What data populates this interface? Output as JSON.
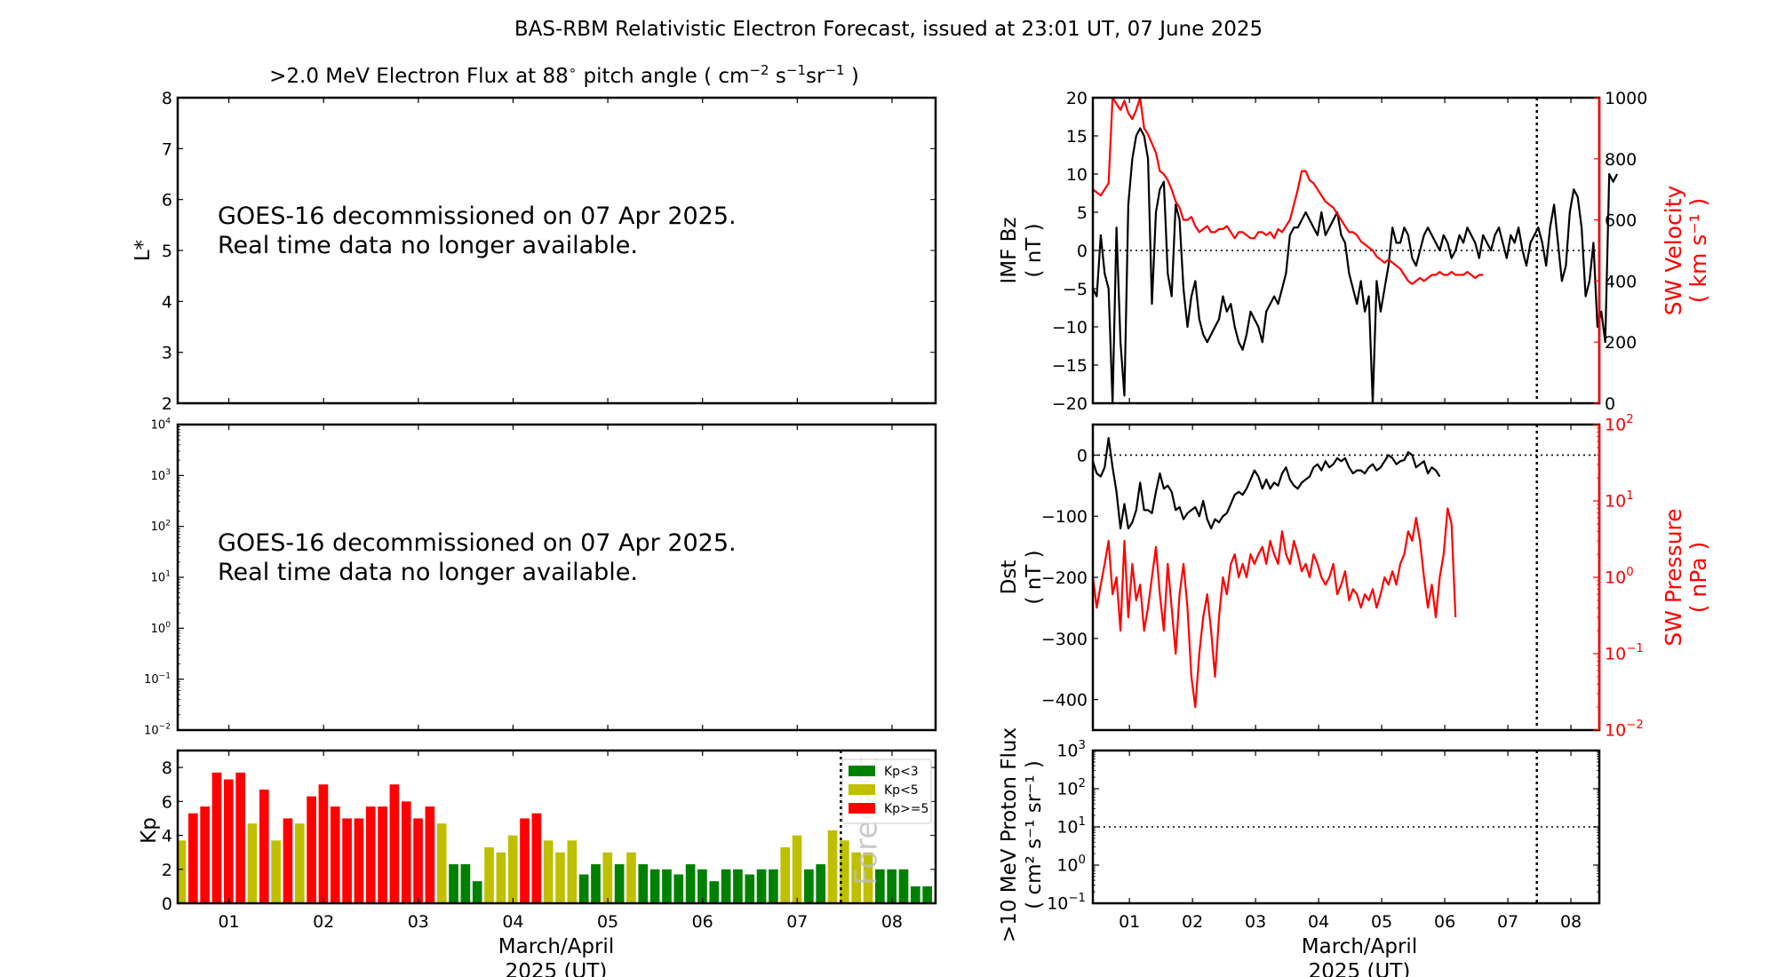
{
  "figure_title": "BAS-RBM Relativistic Electron Forecast, issued at 23:01 UT, 07 June 2025",
  "chart_data": [
    {
      "id": "electron-flux-lstar",
      "type": "heatmap",
      "title": ">2.0 MeV Electron Flux at 88° pitch angle ( cm⁻² s⁻¹ sr⁻¹ )",
      "title_parts": {
        "main": ">2.0 MeV Electron Flux at 88",
        "deg": "∘",
        "after": " pitch angle ( cm",
        "e1": "−2",
        "s": " s",
        "e2": "−1",
        "sr": "sr",
        "e3": "−1",
        "close": " )"
      },
      "ylabel": "L*",
      "ylim": [
        2,
        8
      ],
      "yticks": [
        2,
        3,
        4,
        5,
        6,
        7,
        8
      ],
      "message": [
        "GOES-16 decommissioned on 07 Apr 2025.",
        "Real time data no longer available."
      ]
    },
    {
      "id": "electron-flux-log",
      "type": "line",
      "yscale": "log",
      "ylim": [
        0.01,
        10000
      ],
      "ytick_exponents": [
        "−2",
        "−1",
        "0",
        "1",
        "2",
        "3",
        "4"
      ],
      "message": [
        "GOES-16 decommissioned on 07 Apr 2025.",
        "Real time data no longer available."
      ]
    },
    {
      "id": "kp-index",
      "type": "bar",
      "ylabel": "Kp",
      "ylim": [
        0,
        9
      ],
      "yticks": [
        0,
        2,
        4,
        6,
        8
      ],
      "xlabel": [
        "March/April",
        "2025 (UT)"
      ],
      "xlim_days": [
        0.46,
        8.46
      ],
      "xtick_labels": [
        "01",
        "02",
        "03",
        "04",
        "05",
        "06",
        "07",
        "08"
      ],
      "forecast_day": 7.46,
      "forecast_label": "Forecast",
      "bar_start_day": 0.4375,
      "bar_interval_days": 0.125,
      "values": [
        3.7,
        5.3,
        5.7,
        7.7,
        7.3,
        7.7,
        4.7,
        6.7,
        3.7,
        5.0,
        4.7,
        6.3,
        7.0,
        5.7,
        5.0,
        5.0,
        5.7,
        5.7,
        7.0,
        6.0,
        5.0,
        5.7,
        4.7,
        2.3,
        2.3,
        1.3,
        3.3,
        3.0,
        4.0,
        5.0,
        5.3,
        3.7,
        3.0,
        3.7,
        1.7,
        2.3,
        3.0,
        2.3,
        3.0,
        2.3,
        2.0,
        2.0,
        1.7,
        2.3,
        2.0,
        1.3,
        2.0,
        2.0,
        1.7,
        2.0,
        2.0,
        3.3,
        4.0,
        2.0,
        2.3,
        4.3,
        3.7,
        3.0,
        3.0,
        2.0,
        2.0,
        2.0,
        1.0,
        1.0,
        2.0
      ],
      "legend": [
        {
          "label": "Kp<3",
          "color": "#008000"
        },
        {
          "label": "Kp<5",
          "color": "#bfbf00"
        },
        {
          "label": "Kp>=5",
          "color": "#ff0000"
        }
      ],
      "legend_position": "top-right"
    },
    {
      "id": "imf-bz-sw-velocity",
      "type": "line",
      "ylabel": [
        "IMF Bz",
        "( nT )"
      ],
      "ylim": [
        -20,
        20
      ],
      "yticks": [
        -20,
        -15,
        -10,
        -5,
        0,
        5,
        10,
        15,
        20
      ],
      "y2label": [
        "SW Velocity",
        "( km s⁻¹ )"
      ],
      "y2lim": [
        0,
        1000
      ],
      "y2ticks": [
        0,
        200,
        400,
        600,
        800,
        1000
      ],
      "xlim_days": [
        0.42,
        8.45
      ],
      "forecast_day": 7.46,
      "series": [
        {
          "name": "IMF Bz",
          "color": "#000000",
          "x_start": 0.42,
          "dx": 0.0625,
          "values": [
            -5,
            -6,
            2,
            -3,
            -5,
            -20,
            3,
            -12,
            -19,
            6,
            12,
            15,
            16,
            15,
            12,
            -7,
            5,
            8,
            9,
            -3,
            -6,
            6,
            4,
            -5,
            -10,
            -6,
            -4,
            -9,
            -11,
            -12,
            -11,
            -10,
            -9,
            -6,
            -8,
            -7,
            -10,
            -12,
            -13,
            -11,
            -8,
            -9,
            -10,
            -12,
            -8,
            -7,
            -6,
            -7,
            -5,
            -3,
            2,
            3,
            3,
            4,
            5,
            4,
            3,
            2,
            5,
            2,
            3,
            4,
            5,
            2,
            1,
            -3,
            -5,
            -7,
            -4,
            -8,
            -6,
            -20,
            -4,
            -8,
            -5,
            -2,
            3,
            1,
            1,
            3,
            2,
            -1,
            -2,
            0,
            2,
            3,
            2,
            1,
            0,
            2,
            1,
            -1,
            0,
            2,
            1,
            3,
            2,
            1,
            -1,
            2,
            1,
            0,
            2,
            3,
            1,
            -1,
            2,
            1,
            3,
            0,
            -2,
            1,
            2,
            3,
            1,
            -2,
            3,
            6,
            1,
            -4,
            -2,
            5,
            8,
            7,
            3,
            -6,
            -4,
            1,
            -10,
            -8,
            -12,
            10,
            9,
            10
          ]
        },
        {
          "name": "SW Velocity",
          "color": "#ff0000",
          "x_start": 0.42,
          "dx": 0.0625,
          "values": [
            700,
            690,
            680,
            700,
            720,
            1000,
            980,
            960,
            990,
            950,
            930,
            960,
            1000,
            900,
            880,
            850,
            820,
            760,
            750,
            730,
            700,
            660,
            640,
            600,
            600,
            610,
            580,
            560,
            570,
            580,
            560,
            560,
            570,
            570,
            580,
            560,
            540,
            560,
            560,
            550,
            540,
            540,
            560,
            560,
            550,
            560,
            540,
            570,
            560,
            580,
            600,
            650,
            700,
            760,
            760,
            730,
            720,
            700,
            680,
            660,
            650,
            640,
            620,
            600,
            580,
            560,
            560,
            550,
            530,
            520,
            510,
            500,
            480,
            470,
            460,
            470,
            460,
            450,
            440,
            420,
            400,
            390,
            400,
            410,
            400,
            410,
            420,
            420,
            430,
            420,
            420,
            430,
            420,
            420,
            420,
            430,
            420,
            410,
            420,
            420
          ]
        }
      ]
    },
    {
      "id": "dst-sw-pressure",
      "type": "line",
      "ylabel": [
        "Dst",
        "( nT )"
      ],
      "ylim": [
        -450,
        50
      ],
      "yticks": [
        -400,
        -300,
        -200,
        -100,
        0
      ],
      "y2label": [
        "SW Pressure",
        "( nPa )"
      ],
      "y2scale": "log",
      "y2lim": [
        0.01,
        100
      ],
      "y2tick_exponents": [
        "−2",
        "−1",
        "0",
        "1",
        "2"
      ],
      "xlim_days": [
        0.42,
        8.45
      ],
      "forecast_day": 7.46,
      "series": [
        {
          "name": "Dst",
          "color": "#000000",
          "x_start": 0.42,
          "dx": 0.0625,
          "values": [
            -10,
            -30,
            -35,
            -20,
            28,
            -20,
            -60,
            -120,
            -80,
            -120,
            -110,
            -90,
            -45,
            -90,
            -90,
            -95,
            -60,
            -30,
            -55,
            -50,
            -60,
            -90,
            -85,
            -105,
            -95,
            -90,
            -85,
            -100,
            -75,
            -105,
            -120,
            -105,
            -110,
            -100,
            -95,
            -80,
            -65,
            -60,
            -65,
            -55,
            -40,
            -25,
            -35,
            -55,
            -40,
            -55,
            -45,
            -50,
            -30,
            -20,
            -40,
            -50,
            -55,
            -45,
            -40,
            -35,
            -20,
            -15,
            -25,
            -10,
            -20,
            -15,
            -5,
            -10,
            -5,
            -20,
            -30,
            -25,
            -25,
            -30,
            -20,
            -15,
            -25,
            -20,
            -10,
            0,
            -5,
            -15,
            -10,
            -8,
            5,
            0,
            -20,
            -15,
            -10,
            -30,
            -20,
            -25,
            -35
          ]
        },
        {
          "name": "SW Pressure",
          "color": "#ff0000",
          "x_start": 0.42,
          "dx": 0.0625,
          "values": [
            1.0,
            0.4,
            0.8,
            1.5,
            3.0,
            0.6,
            1.0,
            0.2,
            3.0,
            0.3,
            1.5,
            0.5,
            0.8,
            0.2,
            0.4,
            1.0,
            2.5,
            0.6,
            0.2,
            1.5,
            0.4,
            0.1,
            0.6,
            1.5,
            0.4,
            0.05,
            0.02,
            0.1,
            0.3,
            0.6,
            0.2,
            0.05,
            0.3,
            1.0,
            0.6,
            1.5,
            2.0,
            1.0,
            1.5,
            1.0,
            2.0,
            1.5,
            2.0,
            2.5,
            1.5,
            3.0,
            2.0,
            1.5,
            4.0,
            2.0,
            1.5,
            3.0,
            2.0,
            1.2,
            1.5,
            1.0,
            2.0,
            1.5,
            1.0,
            0.8,
            1.0,
            1.5,
            0.6,
            0.8,
            1.2,
            0.5,
            0.7,
            0.6,
            0.4,
            0.6,
            0.5,
            0.7,
            0.4,
            0.6,
            1.0,
            0.8,
            1.2,
            0.8,
            1.5,
            2.0,
            4.0,
            3.0,
            6.0,
            3.0,
            1.0,
            0.4,
            0.8,
            0.3,
            1.0,
            2.0,
            8.0,
            5.0,
            0.3
          ]
        }
      ]
    },
    {
      "id": "proton-flux",
      "type": "line",
      "ylabel": [
        ">10 MeV Proton Flux",
        "( cm² s⁻¹ sr⁻¹ )"
      ],
      "yscale": "log",
      "ylim": [
        0.1,
        1000
      ],
      "ytick_exponents": [
        "−1",
        "0",
        "1",
        "2",
        "3"
      ],
      "threshold": 10,
      "xlabel": [
        "March/April",
        "2025 (UT)"
      ],
      "xlim_days": [
        0.42,
        8.45
      ],
      "xtick_labels": [
        "01",
        "02",
        "03",
        "04",
        "05",
        "06",
        "07",
        "08"
      ],
      "forecast_day": 7.46,
      "series": []
    }
  ]
}
